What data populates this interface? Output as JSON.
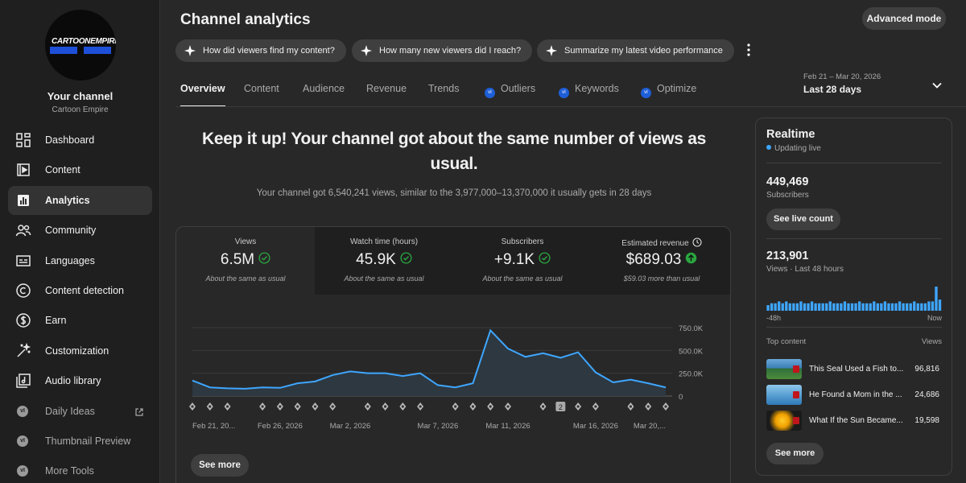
{
  "sidebar": {
    "logo_text": "CARTOONEMPIRE",
    "channel_label": "Your channel",
    "channel_name": "Cartoon Empire",
    "items": [
      {
        "label": "Dashboard",
        "icon": "dashboard-icon"
      },
      {
        "label": "Content",
        "icon": "content-icon"
      },
      {
        "label": "Analytics",
        "icon": "analytics-icon",
        "active": true
      },
      {
        "label": "Community",
        "icon": "community-icon"
      },
      {
        "label": "Languages",
        "icon": "languages-icon"
      },
      {
        "label": "Content detection",
        "icon": "copyright-icon"
      },
      {
        "label": "Earn",
        "icon": "dollar-icon"
      },
      {
        "label": "Customization",
        "icon": "magic-wand-icon"
      },
      {
        "label": "Audio library",
        "icon": "audio-library-icon"
      }
    ],
    "tools": [
      {
        "label": "Daily Ideas",
        "icon": "tool-badge-icon",
        "external": true
      },
      {
        "label": "Thumbnail Preview",
        "icon": "tool-badge-icon"
      },
      {
        "label": "More Tools",
        "icon": "tool-badge-icon"
      }
    ]
  },
  "header": {
    "title": "Channel analytics",
    "advanced_mode": "Advanced mode",
    "chips": [
      "How did viewers find my content?",
      "How many new viewers did I reach?",
      "Summarize my latest video performance"
    ]
  },
  "tabs": [
    "Overview",
    "Content",
    "Audience",
    "Revenue",
    "Trends",
    "Outliers",
    "Keywords",
    "Optimize"
  ],
  "date": {
    "range": "Feb 21 – Mar 20, 2026",
    "label": "Last 28 days"
  },
  "summary": {
    "headline": "Keep it up! Your channel got about the same number of views as usual.",
    "subline": "Your channel got 6,540,241 views, similar to the 3,977,000–13,370,000 it usually gets in 28 days"
  },
  "metrics": [
    {
      "label": "Views",
      "value": "6.5M",
      "note": "About the same as usual",
      "status": "ok"
    },
    {
      "label": "Watch time (hours)",
      "value": "45.9K",
      "note": "About the same as usual",
      "status": "ok"
    },
    {
      "label": "Subscribers",
      "value": "+9.1K",
      "note": "About the same as usual",
      "status": "ok"
    },
    {
      "label": "Estimated revenue",
      "value": "$689.03",
      "note": "$59.03 more than usual",
      "status": "up"
    }
  ],
  "chart_data": {
    "type": "area",
    "x": [
      "Feb 21",
      "Feb 22",
      "Feb 23",
      "Feb 24",
      "Feb 25",
      "Feb 26",
      "Feb 27",
      "Feb 28",
      "Mar 1",
      "Mar 2",
      "Mar 3",
      "Mar 4",
      "Mar 5",
      "Mar 6",
      "Mar 7",
      "Mar 8",
      "Mar 9",
      "Mar 10",
      "Mar 11",
      "Mar 12",
      "Mar 13",
      "Mar 14",
      "Mar 15",
      "Mar 16",
      "Mar 17",
      "Mar 18",
      "Mar 19",
      "Mar 20"
    ],
    "x_tick_labels": [
      "Feb 21, 20...",
      "Feb 26, 2026",
      "Mar 2, 2026",
      "Mar 7, 2026",
      "Mar 11, 2026",
      "Mar 16, 2026",
      "Mar 20,..."
    ],
    "x_tick_index": [
      0,
      5,
      9,
      14,
      18,
      23,
      27
    ],
    "values": [
      170000,
      95000,
      85000,
      80000,
      95000,
      90000,
      140000,
      160000,
      230000,
      270000,
      250000,
      250000,
      220000,
      250000,
      120000,
      95000,
      140000,
      720000,
      520000,
      430000,
      470000,
      420000,
      480000,
      260000,
      150000,
      180000,
      140000,
      95000
    ],
    "y_ticks": [
      "750.0K",
      "500.0K",
      "250.0K",
      "0"
    ],
    "y_tick_values": [
      750000,
      500000,
      250000,
      0
    ],
    "ylim": [
      0,
      750000
    ],
    "marker_badge": "2",
    "see_more": "See more",
    "colors": {
      "line": "#3ea6ff",
      "fill": "#2d3a44"
    }
  },
  "realtime": {
    "title": "Realtime",
    "status": "Updating live",
    "subscribers_value": "449,469",
    "subscribers_label": "Subscribers",
    "live_count_btn": "See live count",
    "views_value": "213,901",
    "views_label": "Views · Last 48 hours",
    "bars": [
      3,
      4,
      4,
      5,
      4,
      5,
      4,
      4,
      4,
      5,
      4,
      4,
      5,
      4,
      4,
      4,
      4,
      5,
      4,
      4,
      4,
      5,
      4,
      4,
      4,
      5,
      4,
      4,
      4,
      5,
      4,
      4,
      5,
      4,
      4,
      4,
      5,
      4,
      4,
      4,
      5,
      4,
      4,
      4,
      5,
      5,
      13,
      6
    ],
    "axis_start": "-48h",
    "axis_end": "Now",
    "top_content_label": "Top content",
    "views_col": "Views",
    "videos": [
      {
        "title": "This Seal Used a Fish to...",
        "views": "96,816"
      },
      {
        "title": "He Found a Mom in the ...",
        "views": "24,686"
      },
      {
        "title": "What If the Sun Became...",
        "views": "19,598"
      }
    ],
    "see_more": "See more"
  }
}
